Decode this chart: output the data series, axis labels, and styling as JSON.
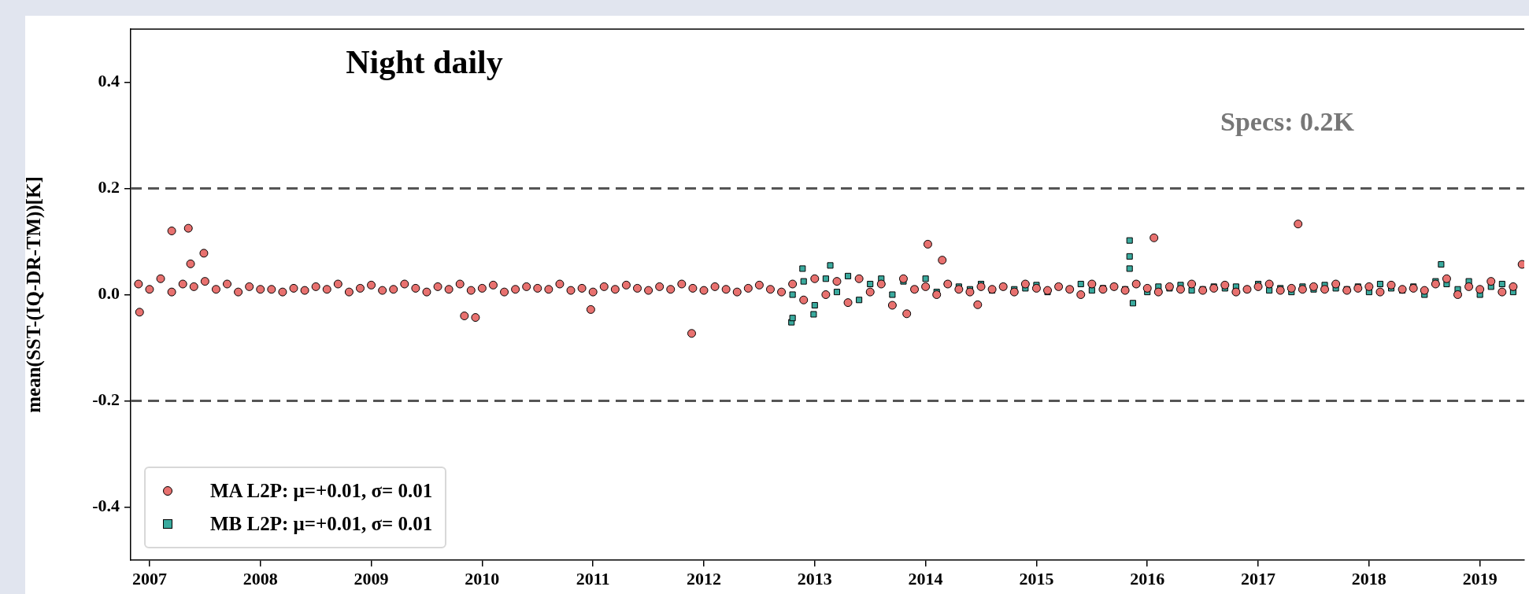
{
  "chart_data": {
    "type": "scatter",
    "title": "Night daily",
    "ylabel": "mean(SST-(IQ-DR-TM))[K]",
    "annotations": [
      "Specs: 0.2K"
    ],
    "xlim": [
      2006.83,
      2019.4
    ],
    "xticks": [
      2007,
      2008,
      2009,
      2010,
      2011,
      2012,
      2013,
      2014,
      2015,
      2016,
      2017,
      2018,
      2019
    ],
    "ylim": [
      -0.5,
      0.5
    ],
    "yticks": [
      -0.4,
      -0.2,
      {
        "value": 0,
        "label": "0.0"
      },
      0.2,
      0.4
    ],
    "grid": false,
    "legend": "bottom left",
    "ref_lines": [
      {
        "axis": "y",
        "value": 0.2,
        "color": "#555555",
        "line_style": "dashed"
      },
      {
        "axis": "y",
        "value": -0.2,
        "color": "#555555",
        "line_style": "dashed"
      }
    ],
    "series": [
      {
        "name": "MA L2P: μ=+0.01, σ= 0.01",
        "color": "#e8716f",
        "marker": "circle",
        "x": [
          2006.9,
          2007,
          2007.1,
          2007.2,
          2007.3,
          2007.4,
          2007.5,
          2007.6,
          2007.7,
          2007.8,
          2007.9,
          2008,
          2008.1,
          2008.2,
          2008.3,
          2008.4,
          2008.5,
          2008.6,
          2008.7,
          2008.8,
          2008.9,
          2009,
          2009.1,
          2009.2,
          2009.3,
          2009.4,
          2009.5,
          2009.6,
          2009.7,
          2009.8,
          2009.9,
          2010,
          2010.1,
          2010.2,
          2010.3,
          2010.4,
          2010.5,
          2010.6,
          2010.7,
          2010.8,
          2010.9,
          2011,
          2011.1,
          2011.2,
          2011.3,
          2011.4,
          2011.5,
          2011.6,
          2011.7,
          2011.8,
          2011.9,
          2012,
          2012.1,
          2012.2,
          2012.3,
          2012.4,
          2012.5,
          2012.6,
          2012.7,
          2012.8,
          2012.9,
          2013,
          2013.1,
          2013.2,
          2013.3,
          2013.4,
          2013.5,
          2013.6,
          2013.7,
          2013.8,
          2013.9,
          2014,
          2014.1,
          2014.2,
          2014.3,
          2014.4,
          2014.5,
          2014.6,
          2014.7,
          2014.8,
          2014.9,
          2015,
          2015.1,
          2015.2,
          2015.3,
          2015.4,
          2015.5,
          2015.6,
          2015.7,
          2015.8,
          2015.9,
          2016,
          2016.1,
          2016.2,
          2016.3,
          2016.4,
          2016.5,
          2016.6,
          2016.7,
          2016.8,
          2016.9,
          2017,
          2017.1,
          2017.2,
          2017.3,
          2017.4,
          2017.5,
          2017.6,
          2017.7,
          2017.8,
          2017.9,
          2018,
          2018.1,
          2018.2,
          2018.3,
          2018.4,
          2018.5,
          2018.6,
          2018.7,
          2018.8,
          2018.9,
          2019,
          2019.1,
          2019.2,
          2019.3,
          2006.91,
          2007.2,
          2007.35,
          2007.37,
          2007.49,
          2009.84,
          2009.94,
          2010.98,
          2011.89,
          2014.02,
          2014.15,
          2016.06,
          2017.36,
          2019.38,
          2013.83,
          2014.47
        ],
        "values": [
          0.02,
          0.01,
          0.03,
          0.005,
          0.02,
          0.015,
          0.025,
          0.01,
          0.02,
          0.005,
          0.015,
          0.01,
          0.01,
          0.005,
          0.012,
          0.008,
          0.015,
          0.01,
          0.02,
          0.005,
          0.012,
          0.018,
          0.008,
          0.01,
          0.02,
          0.012,
          0.005,
          0.015,
          0.01,
          0.02,
          0.008,
          0.012,
          0.018,
          0.005,
          0.01,
          0.015,
          0.012,
          0.01,
          0.02,
          0.008,
          0.012,
          0.005,
          0.015,
          0.01,
          0.018,
          0.012,
          0.008,
          0.015,
          0.01,
          0.02,
          0.012,
          0.008,
          0.015,
          0.01,
          0.005,
          0.012,
          0.018,
          0.01,
          0.005,
          0.02,
          -0.01,
          0.03,
          0.0,
          0.025,
          -0.015,
          0.03,
          0.005,
          0.02,
          -0.02,
          0.03,
          0.01,
          0.015,
          0.0,
          0.02,
          0.01,
          0.005,
          0.015,
          0.01,
          0.015,
          0.005,
          0.02,
          0.012,
          0.008,
          0.015,
          0.01,
          0.0,
          0.02,
          0.01,
          0.015,
          0.008,
          0.02,
          0.012,
          0.005,
          0.015,
          0.01,
          0.02,
          0.008,
          0.012,
          0.018,
          0.005,
          0.01,
          0.015,
          0.02,
          0.008,
          0.012,
          0.01,
          0.015,
          0.01,
          0.02,
          0.008,
          0.012,
          0.015,
          0.005,
          0.018,
          0.01,
          0.012,
          0.008,
          0.02,
          0.03,
          0.0,
          0.015,
          0.01,
          0.025,
          0.005,
          0.015,
          -0.033,
          0.12,
          0.125,
          0.058,
          0.078,
          -0.04,
          -0.043,
          -0.028,
          -0.073,
          0.095,
          0.065,
          0.107,
          0.133,
          0.057,
          -0.036,
          -0.019
        ]
      },
      {
        "name": "MB L2P: μ=+0.01, σ= 0.01",
        "color": "#3aaa9e",
        "marker": "square",
        "x": [
          2012.8,
          2012.9,
          2013,
          2013.1,
          2013.2,
          2013.3,
          2013.4,
          2013.5,
          2013.6,
          2013.7,
          2013.8,
          2013.9,
          2014,
          2014.1,
          2014.2,
          2014.3,
          2014.4,
          2014.5,
          2014.6,
          2014.7,
          2014.8,
          2014.9,
          2015,
          2015.1,
          2015.2,
          2015.3,
          2015.4,
          2015.5,
          2015.6,
          2015.7,
          2015.8,
          2015.9,
          2016,
          2016.1,
          2016.2,
          2016.3,
          2016.4,
          2016.5,
          2016.6,
          2016.7,
          2016.8,
          2016.9,
          2017,
          2017.1,
          2017.2,
          2017.3,
          2017.4,
          2017.5,
          2017.6,
          2017.7,
          2017.8,
          2017.9,
          2018,
          2018.1,
          2018.2,
          2018.3,
          2018.4,
          2018.5,
          2018.6,
          2018.7,
          2018.8,
          2018.9,
          2019,
          2019.1,
          2019.2,
          2019.3,
          2015.84,
          2015.84,
          2015.84,
          2012.79,
          2012.8,
          2012.99,
          2012.89,
          2013.14,
          2018.65,
          2015.87
        ],
        "values": [
          0.0,
          0.025,
          -0.02,
          0.03,
          0.005,
          0.035,
          -0.01,
          0.02,
          0.03,
          0.0,
          0.025,
          0.01,
          0.03,
          0.005,
          0.02,
          0.015,
          0.01,
          0.02,
          0.008,
          0.015,
          0.01,
          0.012,
          0.018,
          0.005,
          0.015,
          0.01,
          0.02,
          0.008,
          0.012,
          0.015,
          0.01,
          0.02,
          0.005,
          0.015,
          0.012,
          0.018,
          0.008,
          0.01,
          0.015,
          0.012,
          0.015,
          0.01,
          0.02,
          0.008,
          0.012,
          0.005,
          0.015,
          0.01,
          0.018,
          0.012,
          0.01,
          0.015,
          0.005,
          0.02,
          0.012,
          0.008,
          0.015,
          0.0,
          0.025,
          0.02,
          0.01,
          0.025,
          0.0,
          0.015,
          0.02,
          0.005,
          0.102,
          0.072,
          0.049,
          -0.052,
          -0.044,
          -0.037,
          0.049,
          0.055,
          0.057,
          -0.016
        ]
      }
    ]
  }
}
